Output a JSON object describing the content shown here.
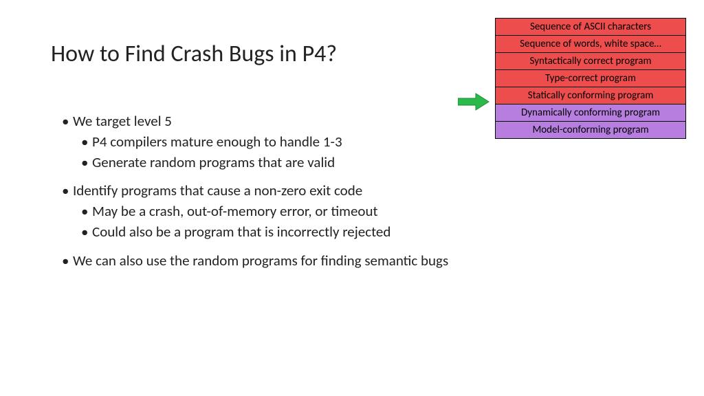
{
  "title": "How to Find Crash Bugs in P4?",
  "bullets": {
    "g1": {
      "l1": "We target level 5",
      "l2a": "P4 compilers mature enough to handle 1-3",
      "l2b": "Generate random programs that are valid"
    },
    "g2": {
      "l1": "Identify programs that cause a non-zero exit code",
      "l2a": "May be a crash, out-of-memory error, or timeout",
      "l2b": "Could also be a program that is incorrectly rejected"
    },
    "g3": {
      "l1": "We can also use the random programs for finding semantic bugs"
    }
  },
  "levels_table": {
    "rows": [
      {
        "label": "Sequence of ASCII characters",
        "bg": "#ed4d4d"
      },
      {
        "label": "Sequence of words, white space…",
        "bg": "#ed4d4d"
      },
      {
        "label": "Syntactically correct program",
        "bg": "#ed4d4d"
      },
      {
        "label": "Type-correct program",
        "bg": "#ed4d4d"
      },
      {
        "label": "Statically conforming program",
        "bg": "#ed4d4d"
      },
      {
        "label": "Dynamically conforming program",
        "bg": "#b77ee0"
      },
      {
        "label": "Model-conforming program",
        "bg": "#b77ee0"
      }
    ],
    "border_color": "#000000",
    "fontsize": 15
  },
  "arrow": {
    "fill": "#2bba4a",
    "stroke": "#1e8a36"
  }
}
